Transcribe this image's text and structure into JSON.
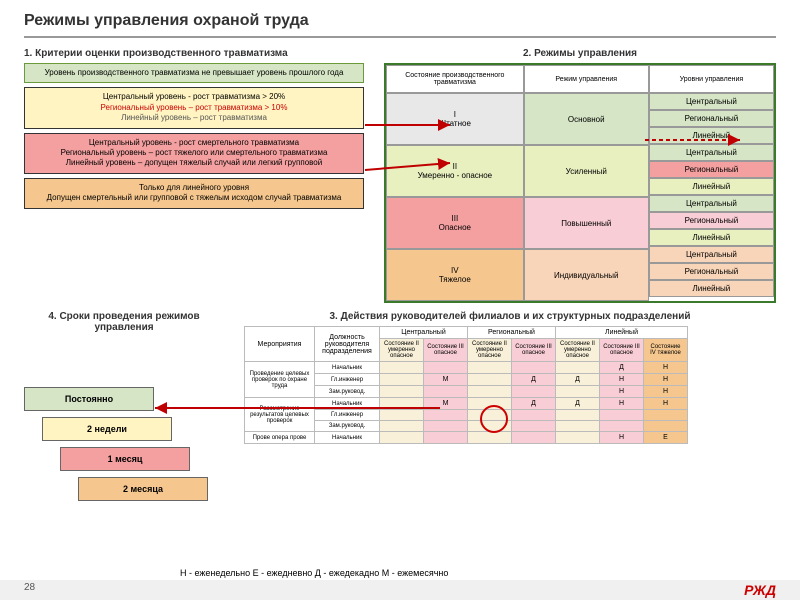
{
  "title": "Режимы управления охраной труда",
  "sec1": {
    "h": "1. Критерии оценки производственного травматизма",
    "b1": "Уровень производственного травматизма не превышает уровень прошлого года",
    "b2a": "Центральный уровень - рост травматизма > 20%",
    "b2b": "Региональный уровень – рост травматизма > 10%",
    "b2c": "Линейный уровень – рост травматизма",
    "b3": "Центральный уровень - рост смертельного травматизма\nРегиональный уровень – рост тяжелого или смертельного травматизма\nЛинейный уровень – допущен тяжелый случай или легкий групповой",
    "b4": "Только для линейного уровня\nДопущен смертельный или групповой с тяжелым исходом случай травматизма"
  },
  "sec2": {
    "h": "2. Режимы управления",
    "cols": [
      "Состояние производственного травматизма",
      "Режим управления",
      "Уровни управления"
    ],
    "states": [
      {
        "n": "I",
        "t": "Штатное",
        "bg": "#e8e8e8"
      },
      {
        "n": "II",
        "t": "Умеренно - опасное",
        "bg": "#e8f0c0"
      },
      {
        "n": "III",
        "t": "Опасное",
        "bg": "#f4a0a0"
      },
      {
        "n": "IV",
        "t": "Тяжелое",
        "bg": "#f5c78e"
      }
    ],
    "modes": [
      {
        "t": "Основной",
        "bg": "#d5e5c5"
      },
      {
        "t": "Усиленный",
        "bg": "#e8f0c0"
      },
      {
        "t": "Повышенный",
        "bg": "#f8cdd5"
      },
      {
        "t": "Индивидуальный",
        "bg": "#f8d5b8"
      }
    ],
    "levels": [
      "Центральный",
      "Региональный",
      "Линейный"
    ],
    "lvbg": [
      [
        "#d5e5c5",
        "#d5e5c5",
        "#d5e5c5"
      ],
      [
        "#d5e5c5",
        "#f4a0a0",
        "#e8f0c0"
      ],
      [
        "#d5e5c5",
        "#f8cdd5",
        "#e8f0c0"
      ],
      [
        "#f8d5b8",
        "#f8d5b8",
        "#f8d5b8"
      ]
    ]
  },
  "sec3": {
    "h": "3. Действия руководителей филиалов и их структурных подразделений",
    "groups": [
      "Центральный",
      "Региональный",
      "Линейный"
    ],
    "sub": [
      "Состояние II умеренно опасное",
      "Состояние III опасное",
      "Состояние II умеренно опасное",
      "Состояние III опасное",
      "Состояние II умеренно опасное",
      "Состояние III опасное",
      "Состояние IV тяжелое"
    ],
    "acts": [
      "Проведение целевых проверок по охране труда",
      "Рассмотрение результатов целевых проверок",
      "Прове опера прове"
    ],
    "pos": [
      "Начальник",
      "Гл.инженер",
      "Зам.руковод.",
      "Начальник",
      "Гл.инженер",
      "Зам.руковод.",
      "Начальник"
    ],
    "data": [
      [
        "",
        "",
        "",
        "",
        "",
        "",
        ""
      ],
      [
        "",
        "М",
        "",
        "Д",
        "Д",
        "Д",
        "Д"
      ],
      [
        "",
        "",
        "",
        "",
        "",
        "",
        ""
      ],
      [
        "",
        "М",
        "",
        "Д",
        "Д",
        "Д",
        "Д"
      ],
      [
        "",
        "",
        "",
        "",
        "",
        "",
        ""
      ],
      [
        "",
        "",
        "",
        "",
        "",
        "",
        ""
      ],
      [
        "",
        "",
        "",
        "",
        "",
        "",
        ""
      ]
    ],
    "dataR": [
      [
        "",
        "",
        "",
        "",
        "",
        "Д",
        "Н"
      ],
      [
        "",
        "М",
        "",
        "Д",
        "Д",
        "Н",
        "Н"
      ],
      [
        "",
        "",
        "",
        "",
        "",
        "Н",
        "Н"
      ],
      [
        "",
        "М",
        "",
        "Д",
        "Д",
        "Н",
        "Н"
      ],
      [
        "",
        "",
        "",
        "",
        "",
        "",
        ""
      ],
      [
        "",
        "",
        "",
        "",
        "",
        "",
        ""
      ],
      [
        "",
        "",
        "",
        "",
        "",
        "Н",
        "Е"
      ]
    ],
    "colbg": [
      "#f8f0d8",
      "#f8cdd5",
      "#f8f0d8",
      "#f8cdd5",
      "#f8f0d8",
      "#f8cdd5",
      "#f5c78e"
    ]
  },
  "sec4": {
    "h": "4. Сроки проведения режимов управления",
    "d": [
      {
        "t": "Постоянно",
        "bg": "#d5e5c5"
      },
      {
        "t": "2 недели",
        "bg": "#fff4c2"
      },
      {
        "t": "1 месяц",
        "bg": "#f4a0a0"
      },
      {
        "t": "2 месяца",
        "bg": "#f5c78e"
      }
    ]
  },
  "legend": "Н - еженедельно   Е - ежедневно   Д - ежедекадно   М - ежемесячно",
  "page": "28",
  "logo": "РЖД",
  "colors": {
    "arrow": "#c00000"
  }
}
